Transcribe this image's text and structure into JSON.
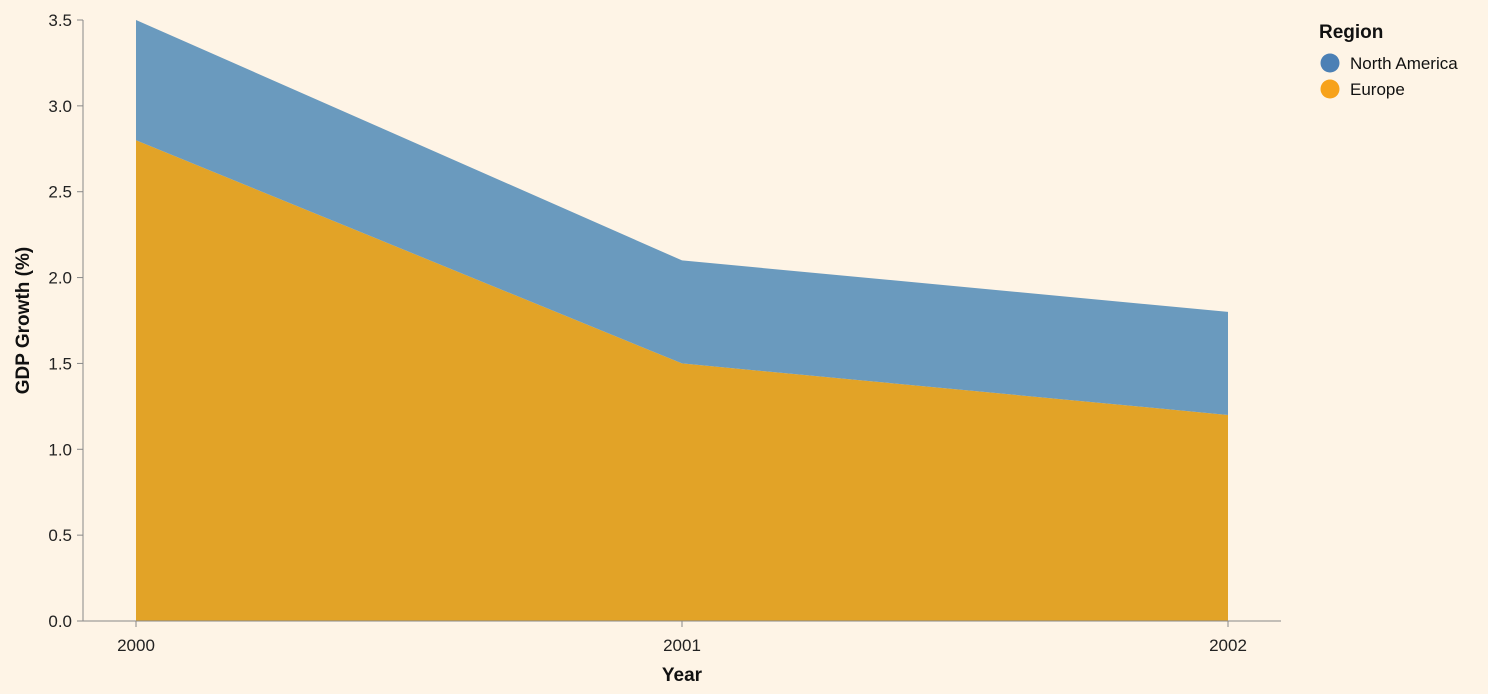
{
  "chart_data": {
    "type": "area",
    "stacked": true,
    "x": [
      "2000",
      "2001",
      "2002"
    ],
    "series": [
      {
        "name": "Europe",
        "values": [
          2.8,
          1.5,
          1.2
        ],
        "color": "#e2a327"
      },
      {
        "name": "North America",
        "values": [
          0.7,
          0.6,
          0.6
        ],
        "color": "#6a9abe"
      }
    ],
    "xlabel": "Year",
    "ylabel": "GDP Growth (%)",
    "ylim": [
      0,
      3.5
    ],
    "yticks": [
      "0.0",
      "0.5",
      "1.0",
      "1.5",
      "2.0",
      "2.5",
      "3.0",
      "3.5"
    ],
    "grid": false,
    "legend": {
      "title": "Region",
      "position": "top-right",
      "items": [
        {
          "label": "North America",
          "color": "#4c80b5"
        },
        {
          "label": "Europe",
          "color": "#f7a21b"
        }
      ]
    },
    "background": "#fef4e6",
    "axis_color": "#888888"
  }
}
